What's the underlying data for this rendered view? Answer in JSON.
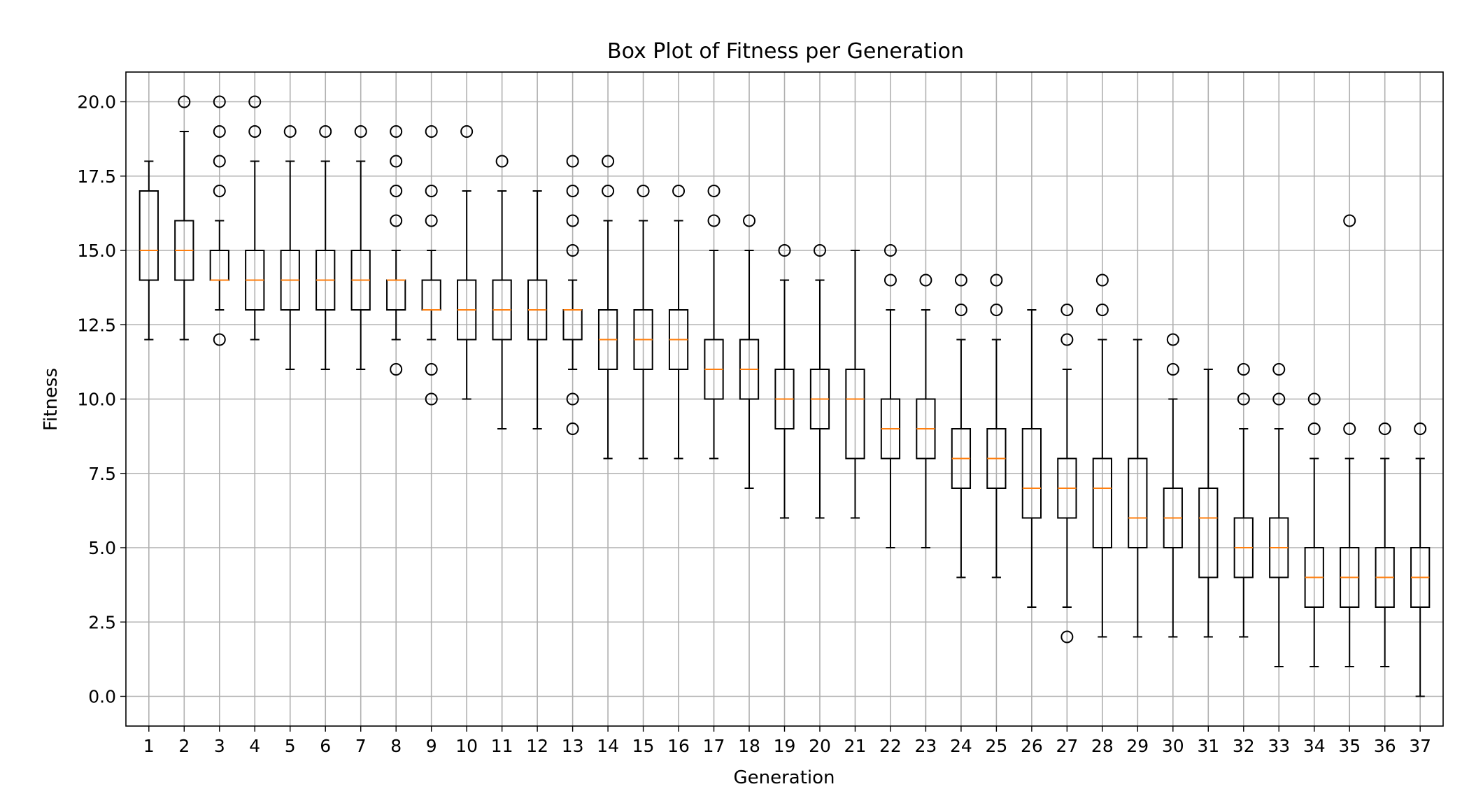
{
  "chart_data": {
    "type": "box",
    "title": "Box Plot of Fitness per Generation",
    "xlabel": "Generation",
    "ylabel": "Fitness",
    "ylim": [
      -1,
      21
    ],
    "yticks": [
      0.0,
      2.5,
      5.0,
      7.5,
      10.0,
      12.5,
      15.0,
      17.5,
      20.0
    ],
    "grid": true,
    "colors": {
      "box": "#000000",
      "median": "#ff7f0e",
      "grid": "#b0b0b0"
    },
    "boxes": [
      {
        "gen": "1",
        "whislo": 12,
        "q1": 14,
        "med": 15,
        "q3": 17,
        "whishi": 18,
        "fliers": []
      },
      {
        "gen": "2",
        "whislo": 12,
        "q1": 14,
        "med": 15,
        "q3": 16,
        "whishi": 19,
        "fliers": [
          20
        ]
      },
      {
        "gen": "3",
        "whislo": 13,
        "q1": 14,
        "med": 14,
        "q3": 15,
        "whishi": 16,
        "fliers": [
          12,
          17,
          18,
          19,
          20
        ]
      },
      {
        "gen": "4",
        "whislo": 12,
        "q1": 13,
        "med": 14,
        "q3": 15,
        "whishi": 18,
        "fliers": [
          19,
          20
        ]
      },
      {
        "gen": "5",
        "whislo": 11,
        "q1": 13,
        "med": 14,
        "q3": 15,
        "whishi": 18,
        "fliers": [
          19
        ]
      },
      {
        "gen": "6",
        "whislo": 11,
        "q1": 13,
        "med": 14,
        "q3": 15,
        "whishi": 18,
        "fliers": [
          19
        ]
      },
      {
        "gen": "7",
        "whislo": 11,
        "q1": 13,
        "med": 14,
        "q3": 15,
        "whishi": 18,
        "fliers": [
          19
        ]
      },
      {
        "gen": "8",
        "whislo": 12,
        "q1": 13,
        "med": 14,
        "q3": 14,
        "whishi": 15,
        "fliers": [
          11,
          16,
          17,
          18,
          19
        ]
      },
      {
        "gen": "9",
        "whislo": 12,
        "q1": 13,
        "med": 13,
        "q3": 14,
        "whishi": 15,
        "fliers": [
          10,
          11,
          16,
          17,
          19
        ]
      },
      {
        "gen": "10",
        "whislo": 10,
        "q1": 12,
        "med": 13,
        "q3": 14,
        "whishi": 17,
        "fliers": [
          19
        ]
      },
      {
        "gen": "11",
        "whislo": 9,
        "q1": 12,
        "med": 13,
        "q3": 14,
        "whishi": 17,
        "fliers": [
          18
        ]
      },
      {
        "gen": "12",
        "whislo": 9,
        "q1": 12,
        "med": 13,
        "q3": 14,
        "whishi": 17,
        "fliers": []
      },
      {
        "gen": "13",
        "whislo": 11,
        "q1": 12,
        "med": 13,
        "q3": 13,
        "whishi": 14,
        "fliers": [
          9,
          10,
          15,
          16,
          17,
          18
        ]
      },
      {
        "gen": "14",
        "whislo": 8,
        "q1": 11,
        "med": 12,
        "q3": 13,
        "whishi": 16,
        "fliers": [
          17,
          18
        ]
      },
      {
        "gen": "15",
        "whislo": 8,
        "q1": 11,
        "med": 12,
        "q3": 13,
        "whishi": 16,
        "fliers": [
          17
        ]
      },
      {
        "gen": "16",
        "whislo": 8,
        "q1": 11,
        "med": 12,
        "q3": 13,
        "whishi": 16,
        "fliers": [
          17
        ]
      },
      {
        "gen": "17",
        "whislo": 8,
        "q1": 10,
        "med": 11,
        "q3": 12,
        "whishi": 15,
        "fliers": [
          16,
          17
        ]
      },
      {
        "gen": "18",
        "whislo": 7,
        "q1": 10,
        "med": 11,
        "q3": 12,
        "whishi": 15,
        "fliers": [
          16
        ]
      },
      {
        "gen": "19",
        "whislo": 6,
        "q1": 9,
        "med": 10,
        "q3": 11,
        "whishi": 14,
        "fliers": [
          15
        ]
      },
      {
        "gen": "20",
        "whislo": 6,
        "q1": 9,
        "med": 10,
        "q3": 11,
        "whishi": 14,
        "fliers": [
          15
        ]
      },
      {
        "gen": "21",
        "whislo": 6,
        "q1": 8,
        "med": 10,
        "q3": 11,
        "whishi": 15,
        "fliers": []
      },
      {
        "gen": "22",
        "whislo": 5,
        "q1": 8,
        "med": 9,
        "q3": 10,
        "whishi": 13,
        "fliers": [
          14,
          15
        ]
      },
      {
        "gen": "23",
        "whislo": 5,
        "q1": 8,
        "med": 9,
        "q3": 10,
        "whishi": 13,
        "fliers": [
          14
        ]
      },
      {
        "gen": "24",
        "whislo": 4,
        "q1": 7,
        "med": 8,
        "q3": 9,
        "whishi": 12,
        "fliers": [
          13,
          14
        ]
      },
      {
        "gen": "25",
        "whislo": 4,
        "q1": 7,
        "med": 8,
        "q3": 9,
        "whishi": 12,
        "fliers": [
          13,
          14
        ]
      },
      {
        "gen": "26",
        "whislo": 3,
        "q1": 6,
        "med": 7,
        "q3": 9,
        "whishi": 13,
        "fliers": []
      },
      {
        "gen": "27",
        "whislo": 3,
        "q1": 6,
        "med": 7,
        "q3": 8,
        "whishi": 11,
        "fliers": [
          2,
          12,
          13
        ]
      },
      {
        "gen": "28",
        "whislo": 2,
        "q1": 5,
        "med": 7,
        "q3": 8,
        "whishi": 12,
        "fliers": [
          13,
          14
        ]
      },
      {
        "gen": "29",
        "whislo": 2,
        "q1": 5,
        "med": 6,
        "q3": 8,
        "whishi": 12,
        "fliers": []
      },
      {
        "gen": "30",
        "whislo": 2,
        "q1": 5,
        "med": 6,
        "q3": 7,
        "whishi": 10,
        "fliers": [
          11,
          12
        ]
      },
      {
        "gen": "31",
        "whislo": 2,
        "q1": 4,
        "med": 6,
        "q3": 7,
        "whishi": 11,
        "fliers": []
      },
      {
        "gen": "32",
        "whislo": 2,
        "q1": 4,
        "med": 5,
        "q3": 6,
        "whishi": 9,
        "fliers": [
          10,
          11
        ]
      },
      {
        "gen": "33",
        "whislo": 1,
        "q1": 4,
        "med": 5,
        "q3": 6,
        "whishi": 9,
        "fliers": [
          10,
          11
        ]
      },
      {
        "gen": "34",
        "whislo": 1,
        "q1": 3,
        "med": 4,
        "q3": 5,
        "whishi": 8,
        "fliers": [
          9,
          10
        ]
      },
      {
        "gen": "35",
        "whislo": 1,
        "q1": 3,
        "med": 4,
        "q3": 5,
        "whishi": 8,
        "fliers": [
          9,
          16
        ]
      },
      {
        "gen": "36",
        "whislo": 1,
        "q1": 3,
        "med": 4,
        "q3": 5,
        "whishi": 8,
        "fliers": [
          9
        ]
      },
      {
        "gen": "37",
        "whislo": 0,
        "q1": 3,
        "med": 4,
        "q3": 5,
        "whishi": 8,
        "fliers": [
          9
        ]
      }
    ]
  }
}
